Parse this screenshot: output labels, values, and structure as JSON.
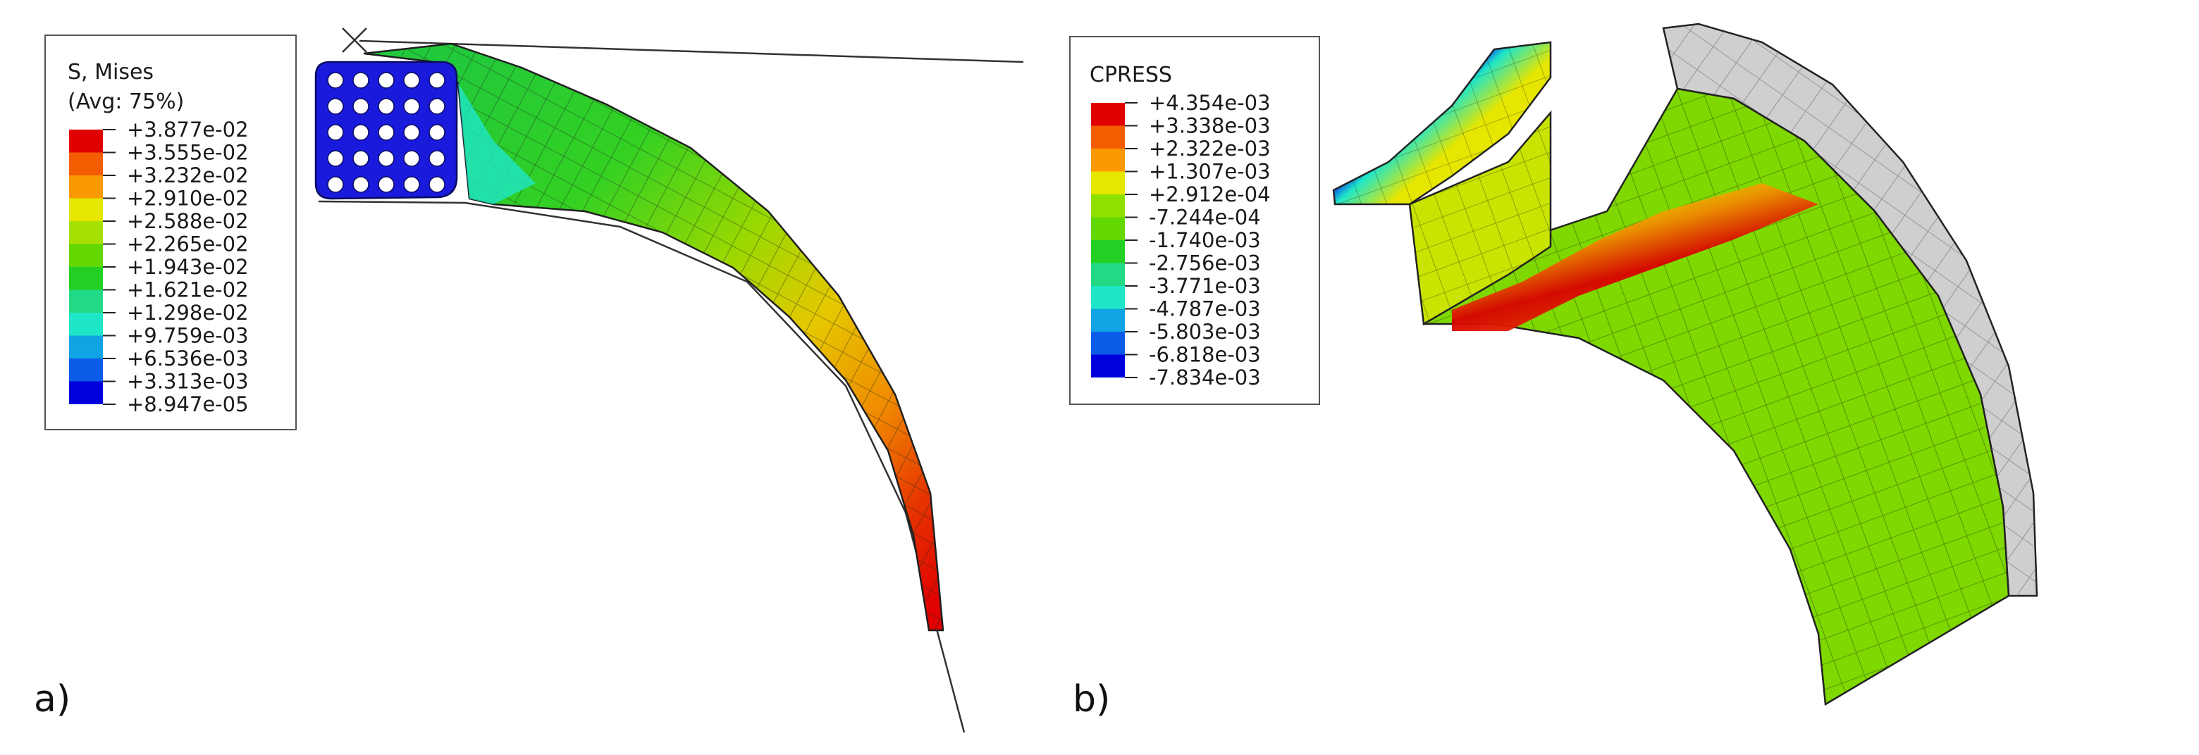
{
  "panel_a": {
    "label": "a)",
    "legend": {
      "title_line1": "S, Mises",
      "title_line2": "(Avg: 75%)",
      "colors": [
        "#e00000",
        "#f35c00",
        "#fb9a00",
        "#e6e600",
        "#a6e000",
        "#62d800",
        "#23cf23",
        "#22d985",
        "#1fe6c8",
        "#11a3e3",
        "#0a5ce8",
        "#0000dc"
      ],
      "values": [
        "+3.877e-02",
        "+3.555e-02",
        "+3.232e-02",
        "+2.910e-02",
        "+2.588e-02",
        "+2.265e-02",
        "+1.943e-02",
        "+1.621e-02",
        "+1.298e-02",
        "+9.759e-03",
        "+6.536e-03",
        "+3.313e-03",
        "+8.947e-05"
      ]
    }
  },
  "panel_b": {
    "label": "b)",
    "legend": {
      "title": "CPRESS",
      "colors": [
        "#e00000",
        "#f35c00",
        "#fb9a00",
        "#e6e600",
        "#8fe000",
        "#62d800",
        "#23cf23",
        "#22d985",
        "#1fe6c8",
        "#11a3e3",
        "#0a5ce8",
        "#0000dc"
      ],
      "values": [
        "+4.354e-03",
        "+3.338e-03",
        "+2.322e-03",
        "+1.307e-03",
        "+2.912e-04",
        "-7.244e-04",
        "-1.740e-03",
        "-2.756e-03",
        "-3.771e-03",
        "-4.787e-03",
        "-5.803e-03",
        "-6.818e-03",
        "-7.834e-03"
      ]
    }
  }
}
